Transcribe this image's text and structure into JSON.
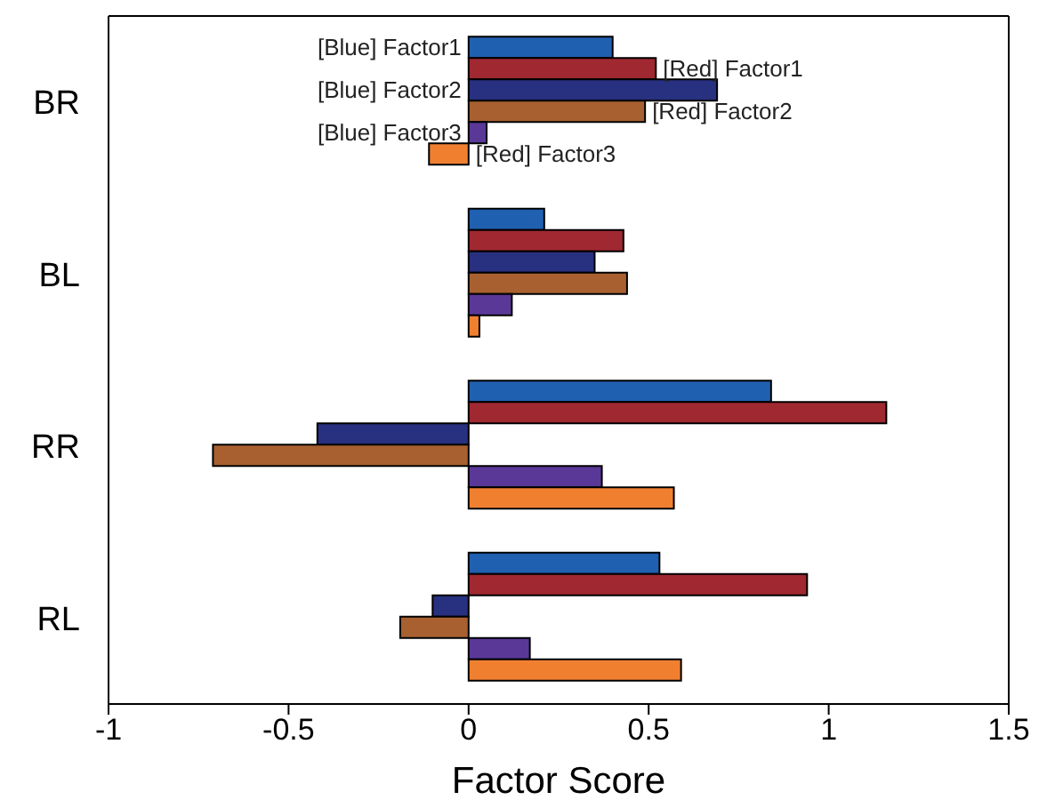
{
  "chart_data": {
    "type": "bar",
    "orientation": "horizontal",
    "xlabel": "Factor Score",
    "categories": [
      "BR",
      "BL",
      "RR",
      "RL"
    ],
    "series": [
      {
        "name": "[Blue] Factor1",
        "color": "#2060b0",
        "values": [
          0.4,
          0.21,
          0.84,
          0.53
        ]
      },
      {
        "name": "[Red] Factor1",
        "color": "#a02830",
        "values": [
          0.52,
          0.43,
          1.16,
          0.94
        ]
      },
      {
        "name": "[Blue] Factor2",
        "color": "#283080",
        "values": [
          0.69,
          0.35,
          -0.42,
          -0.1
        ]
      },
      {
        "name": "[Red] Factor2",
        "color": "#a86030",
        "values": [
          0.49,
          0.44,
          -0.71,
          -0.19
        ]
      },
      {
        "name": "[Blue] Factor3",
        "color": "#5a3898",
        "values": [
          0.05,
          0.12,
          0.37,
          0.17
        ]
      },
      {
        "name": "[Red] Factor3",
        "color": "#f08030",
        "values": [
          -0.11,
          0.03,
          0.57,
          0.59
        ]
      }
    ],
    "xlim": [
      -1,
      1.5
    ],
    "xticks": [
      -1,
      -0.5,
      0,
      0.5,
      1,
      1.5
    ],
    "grid": false
  }
}
